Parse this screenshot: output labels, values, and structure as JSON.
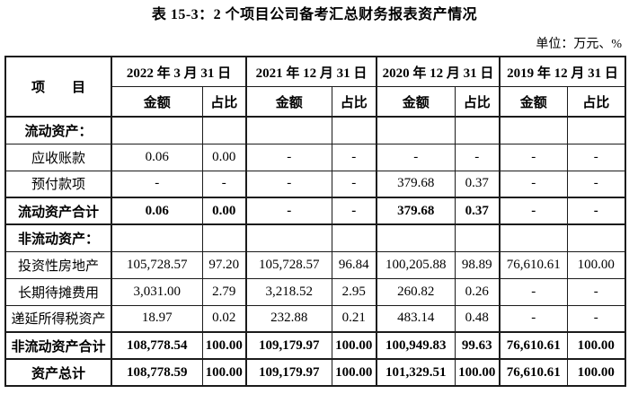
{
  "title": "表 15-3：2 个项目公司备考汇总财务报表资产情况",
  "unit_label": "单位：万元、%",
  "table": {
    "item_header": "项　　目",
    "col_groups": [
      "2022 年 3 月 31 日",
      "2021 年 12 月 31 日",
      "2020 年 12 月 31 日",
      "2019 年 12 月 31 日"
    ],
    "sub_headers": [
      "金额",
      "占比"
    ],
    "rows": [
      {
        "label": "流动资产：",
        "kind": "section",
        "values": [
          "",
          "",
          "",
          "",
          "",
          "",
          "",
          ""
        ]
      },
      {
        "label": "应收账款",
        "kind": "item",
        "values": [
          "0.06",
          "0.00",
          "-",
          "-",
          "-",
          "-",
          "-",
          "-"
        ]
      },
      {
        "label": "预付款项",
        "kind": "item",
        "values": [
          "-",
          "-",
          "-",
          "-",
          "379.68",
          "0.37",
          "-",
          "-"
        ]
      },
      {
        "label": "流动资产合计",
        "kind": "total",
        "values": [
          "0.06",
          "0.00",
          "-",
          "-",
          "379.68",
          "0.37",
          "-",
          "-"
        ]
      },
      {
        "label": "非流动资产：",
        "kind": "section",
        "values": [
          "",
          "",
          "",
          "",
          "",
          "",
          "",
          ""
        ]
      },
      {
        "label": "投资性房地产",
        "kind": "item",
        "values": [
          "105,728.57",
          "97.20",
          "105,728.57",
          "96.84",
          "100,205.88",
          "98.89",
          "76,610.61",
          "100.00"
        ]
      },
      {
        "label": "长期待摊费用",
        "kind": "item",
        "values": [
          "3,031.00",
          "2.79",
          "3,218.52",
          "2.95",
          "260.82",
          "0.26",
          "-",
          "-"
        ]
      },
      {
        "label": "递延所得税资产",
        "kind": "item",
        "values": [
          "18.97",
          "0.02",
          "232.88",
          "0.21",
          "483.14",
          "0.48",
          "-",
          "-"
        ]
      },
      {
        "label": "非流动资产合计",
        "kind": "total",
        "values": [
          "108,778.54",
          "100.00",
          "109,179.97",
          "100.00",
          "100,949.83",
          "99.63",
          "76,610.61",
          "100.00"
        ]
      },
      {
        "label": "资产总计",
        "kind": "total",
        "values": [
          "108,778.59",
          "100.00",
          "109,179.97",
          "100.00",
          "101,329.51",
          "100.00",
          "76,610.61",
          "100.00"
        ]
      }
    ]
  }
}
